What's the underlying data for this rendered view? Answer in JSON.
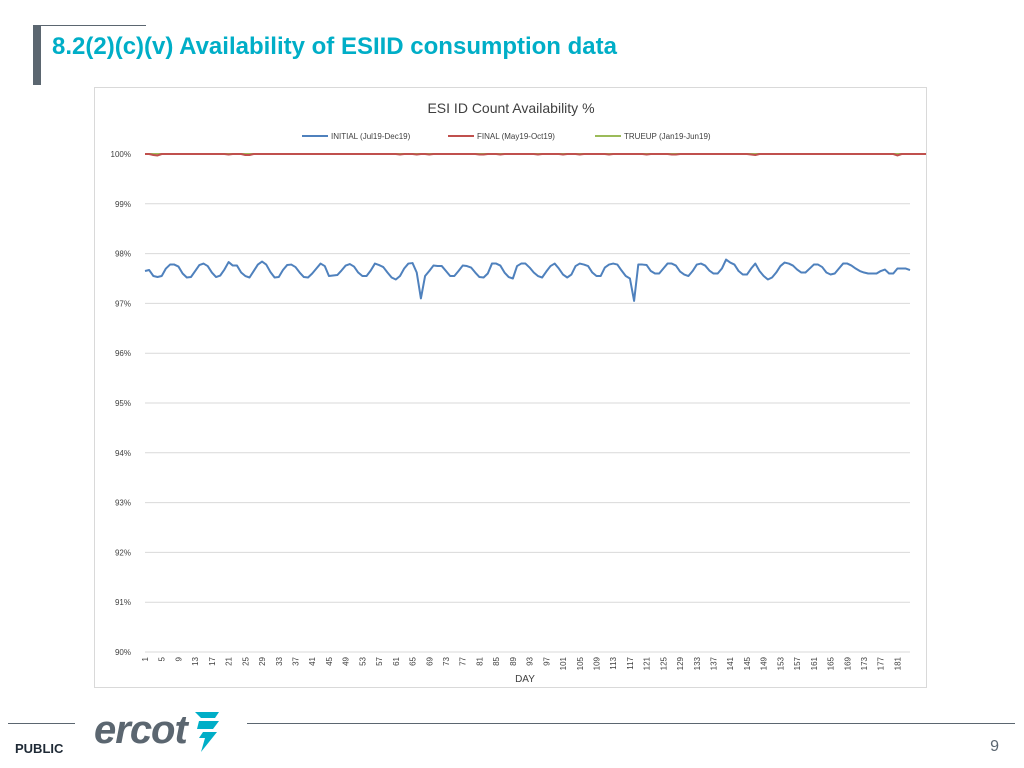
{
  "slide": {
    "title": "8.2(2)(c)(v) Availability of ESIID consumption data",
    "footer_label": "PUBLIC",
    "page_number": "9",
    "logo_text": "ercot",
    "colors": {
      "title": "#00aec7",
      "gray": "#5b6670",
      "logo_teal": "#00aec7"
    }
  },
  "chart_data": {
    "type": "line",
    "title": "ESI ID Count Availability %",
    "xlabel": "DAY",
    "ylabel": "",
    "ylim": [
      90,
      100
    ],
    "xlim": [
      1,
      184
    ],
    "y_ticks": [
      "90%",
      "91%",
      "92%",
      "93%",
      "94%",
      "95%",
      "96%",
      "97%",
      "98%",
      "99%",
      "100%"
    ],
    "x_tick_start": 1,
    "x_tick_step": 4,
    "x_tick_end": 181,
    "grid": true,
    "legend_position": "top",
    "series": [
      {
        "name": "INITIAL (Jul19-Dec19)",
        "color": "#4f81bd",
        "x_start": 1,
        "values": [
          97.65,
          97.67,
          97.55,
          97.53,
          97.55,
          97.7,
          97.78,
          97.78,
          97.74,
          97.6,
          97.52,
          97.53,
          97.65,
          97.77,
          97.8,
          97.75,
          97.62,
          97.53,
          97.56,
          97.68,
          97.83,
          97.76,
          97.76,
          97.62,
          97.55,
          97.52,
          97.65,
          97.78,
          97.84,
          97.78,
          97.63,
          97.52,
          97.53,
          97.67,
          97.77,
          97.78,
          97.73,
          97.62,
          97.53,
          97.52,
          97.6,
          97.7,
          97.8,
          97.75,
          97.55,
          97.56,
          97.57,
          97.66,
          97.76,
          97.79,
          97.74,
          97.62,
          97.55,
          97.55,
          97.66,
          97.8,
          97.77,
          97.73,
          97.62,
          97.52,
          97.48,
          97.55,
          97.7,
          97.8,
          97.81,
          97.62,
          97.1,
          97.55,
          97.65,
          97.76,
          97.75,
          97.75,
          97.65,
          97.55,
          97.55,
          97.65,
          97.76,
          97.75,
          97.72,
          97.62,
          97.53,
          97.52,
          97.6,
          97.8,
          97.8,
          97.76,
          97.62,
          97.53,
          97.5,
          97.75,
          97.8,
          97.8,
          97.72,
          97.62,
          97.55,
          97.52,
          97.64,
          97.75,
          97.8,
          97.7,
          97.58,
          97.52,
          97.58,
          97.75,
          97.8,
          97.78,
          97.75,
          97.62,
          97.55,
          97.55,
          97.72,
          97.78,
          97.8,
          97.78,
          97.66,
          97.55,
          97.5,
          97.05,
          97.78,
          97.78,
          97.77,
          97.65,
          97.6,
          97.6,
          97.7,
          97.8,
          97.8,
          97.76,
          97.64,
          97.58,
          97.55,
          97.65,
          97.78,
          97.8,
          97.76,
          97.66,
          97.6,
          97.6,
          97.7,
          97.88,
          97.82,
          97.78,
          97.65,
          97.58,
          97.58,
          97.7,
          97.8,
          97.65,
          97.55,
          97.48,
          97.52,
          97.62,
          97.75,
          97.82,
          97.8,
          97.76,
          97.68,
          97.62,
          97.62,
          97.7,
          97.78,
          97.78,
          97.73,
          97.62,
          97.58,
          97.6,
          97.7,
          97.8,
          97.8,
          97.76,
          97.7,
          97.65,
          97.62,
          97.6,
          97.6,
          97.6,
          97.65,
          97.68,
          97.6,
          97.6,
          97.7,
          97.7,
          97.7,
          97.67
        ]
      },
      {
        "name": "FINAL (May19-Oct19)",
        "color": "#c0504d",
        "x_start": 1,
        "values": [
          100.0,
          100.0,
          99.98,
          99.97,
          100.0,
          100.0,
          100.0,
          100.0,
          100.0,
          100.0,
          100.0,
          100.0,
          100.0,
          100.0,
          100.0,
          100.0,
          100.0,
          100.0,
          100.0,
          100.0,
          99.99,
          100.0,
          100.0,
          100.0,
          99.98,
          99.98,
          100.0,
          100.0,
          100.0,
          100.0,
          100.0,
          100.0,
          100.0,
          100.0,
          100.0,
          100.0,
          100.0,
          100.0,
          100.0,
          100.0,
          100.0,
          100.0,
          100.0,
          100.0,
          100.0,
          100.0,
          100.0,
          100.0,
          100.0,
          100.0,
          100.0,
          100.0,
          100.0,
          100.0,
          100.0,
          100.0,
          100.0,
          100.0,
          100.0,
          100.0,
          100.0,
          99.99,
          100.0,
          100.0,
          100.0,
          99.99,
          100.0,
          100.0,
          99.99,
          100.0,
          100.0,
          100.0,
          100.0,
          100.0,
          100.0,
          100.0,
          100.0,
          100.0,
          100.0,
          100.0,
          99.99,
          99.99,
          100.0,
          100.0,
          100.0,
          99.99,
          100.0,
          100.0,
          100.0,
          100.0,
          100.0,
          100.0,
          100.0,
          100.0,
          99.99,
          100.0,
          100.0,
          100.0,
          100.0,
          100.0,
          99.99,
          100.0,
          100.0,
          100.0,
          99.99,
          100.0,
          100.0,
          100.0,
          100.0,
          100.0,
          100.0,
          99.99,
          100.0,
          100.0,
          100.0,
          100.0,
          100.0,
          100.0,
          100.0,
          100.0,
          99.99,
          100.0,
          100.0,
          100.0,
          100.0,
          100.0,
          99.99,
          99.99,
          100.0,
          100.0,
          100.0,
          100.0,
          100.0,
          100.0,
          100.0,
          100.0,
          100.0,
          100.0,
          100.0,
          100.0,
          100.0,
          100.0,
          100.0,
          100.0,
          100.0,
          99.99,
          99.98,
          100.0,
          100.0,
          100.0,
          100.0,
          100.0,
          100.0,
          100.0,
          100.0,
          100.0,
          100.0,
          100.0,
          100.0,
          100.0,
          100.0,
          100.0,
          100.0,
          100.0,
          100.0,
          100.0,
          100.0,
          100.0,
          100.0,
          100.0,
          100.0,
          100.0,
          100.0,
          100.0,
          100.0,
          100.0,
          100.0,
          100.0,
          100.0,
          100.0,
          99.97,
          100.0,
          100.0,
          100.0,
          100.0,
          100.0,
          100.0,
          100.0,
          100.0,
          100.0
        ]
      },
      {
        "name": "TRUEUP (Jan19-Jun19)",
        "color": "#9bbb59",
        "x_start": 1,
        "values": [
          100.0,
          100.0,
          100.0,
          100.0,
          100.0,
          100.0,
          100.0,
          100.0,
          100.0,
          100.0,
          100.0,
          100.0,
          100.0,
          100.0,
          100.0,
          100.0,
          100.0,
          100.0,
          100.0,
          100.0,
          100.0,
          100.0,
          100.0,
          100.0,
          100.0,
          100.0,
          100.0,
          100.0,
          100.0,
          100.0,
          100.0,
          100.0,
          100.0,
          100.0,
          100.0,
          100.0,
          100.0,
          100.0,
          100.0,
          100.0,
          100.0,
          100.0,
          100.0,
          100.0,
          100.0,
          100.0,
          100.0,
          100.0,
          100.0,
          100.0,
          100.0,
          100.0,
          100.0,
          100.0,
          100.0,
          100.0,
          100.0,
          100.0,
          100.0,
          100.0,
          100.0,
          100.0,
          100.0,
          100.0,
          100.0,
          100.0,
          100.0,
          100.0,
          100.0,
          100.0,
          100.0,
          100.0,
          100.0,
          100.0,
          100.0,
          100.0,
          100.0,
          100.0,
          100.0,
          100.0,
          100.0,
          100.0,
          100.0,
          100.0,
          100.0,
          100.0,
          100.0,
          100.0,
          100.0,
          100.0,
          100.0,
          100.0,
          100.0,
          100.0,
          100.0,
          100.0,
          100.0,
          100.0,
          100.0,
          100.0,
          100.0,
          100.0,
          100.0,
          100.0,
          100.0,
          100.0,
          100.0,
          100.0,
          100.0,
          100.0,
          100.0,
          100.0,
          100.0,
          100.0,
          100.0,
          100.0,
          100.0,
          100.0,
          100.0,
          100.0,
          100.0,
          100.0,
          100.0,
          100.0,
          100.0,
          100.0,
          100.0,
          100.0,
          100.0,
          100.0,
          100.0,
          100.0,
          100.0,
          100.0,
          100.0,
          100.0,
          100.0,
          100.0,
          100.0,
          100.0,
          100.0,
          100.0,
          100.0,
          100.0,
          100.0,
          100.0,
          100.0,
          100.0,
          100.0,
          100.0,
          100.0,
          100.0,
          100.0,
          100.0,
          100.0,
          100.0,
          100.0,
          100.0,
          100.0,
          100.0,
          100.0,
          100.0,
          100.0,
          100.0,
          100.0,
          100.0,
          100.0,
          100.0,
          100.0,
          100.0,
          100.0,
          100.0,
          100.0,
          100.0,
          100.0,
          100.0,
          100.0,
          100.0,
          100.0,
          100.0,
          100.0,
          100.0
        ]
      }
    ]
  }
}
